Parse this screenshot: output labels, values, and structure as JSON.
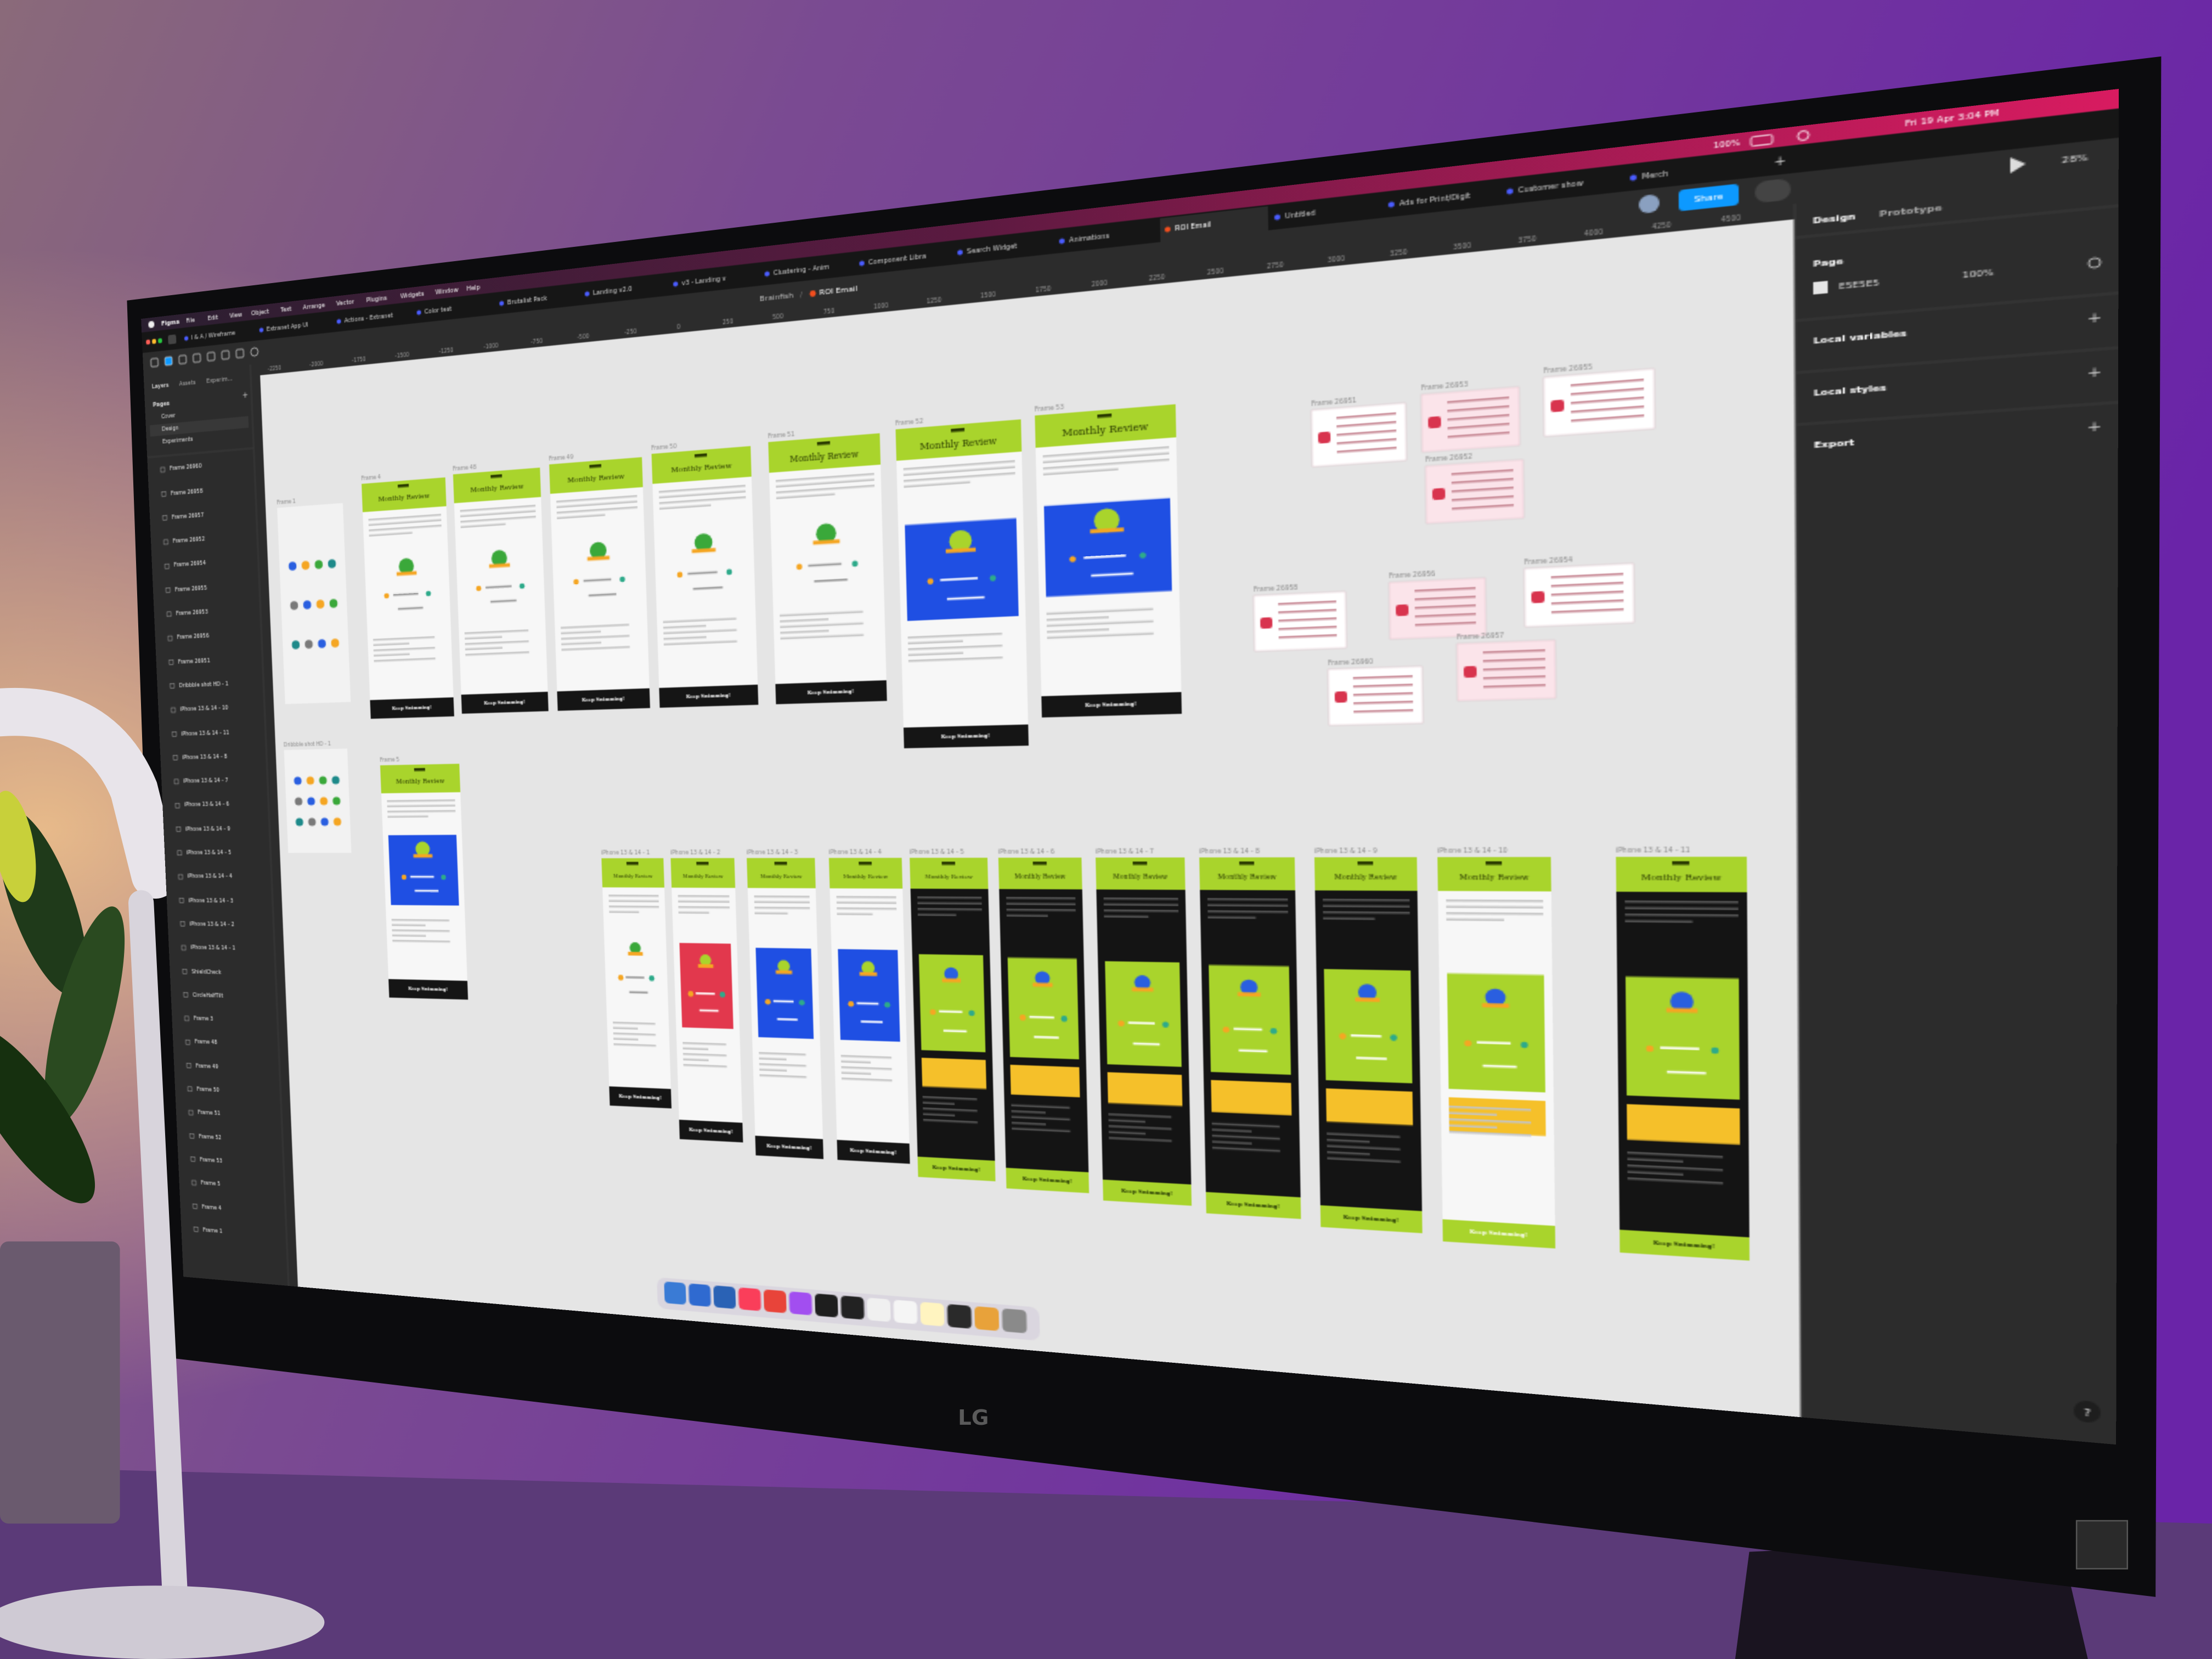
{
  "menu_bar": {
    "items": [
      "Figma",
      "File",
      "Edit",
      "View",
      "Object",
      "Text",
      "Arrange",
      "Vector",
      "Plugins",
      "Widgets",
      "Window",
      "Help"
    ],
    "battery": "100%",
    "datetime": "Fri 19 Apr  3:04 PM"
  },
  "tabs": [
    "I & A / Wireframe",
    "Extranet App UI",
    "Actions - Extranet",
    "Color test",
    "Brutalist Pack",
    "Landing v2.0",
    "v3 - Landing v",
    "Clustering - Anim",
    "Component Libra",
    "Search Widget",
    "Animations",
    "ROI Email",
    "Untitled",
    "Ads for Print/Digit",
    "Customer show",
    "Merch"
  ],
  "active_tab": 11,
  "toolbar": {
    "breadcrumb": "Brainfish",
    "file": "ROI Email",
    "share": "Share",
    "zoom": "28%"
  },
  "left_panel": {
    "tabs": [
      "Layers",
      "Assets",
      "Experim..."
    ],
    "pages_label": "Pages",
    "pages": [
      "Cover",
      "Design",
      "Experiments"
    ],
    "layers": [
      "Frame 26960",
      "Frame 26958",
      "Frame 26957",
      "Frame 26952",
      "Frame 26954",
      "Frame 26955",
      "Frame 26953",
      "Frame 26956",
      "Frame 26951",
      "Dribbble shot HD - 1",
      "iPhone 13 & 14 - 10",
      "iPhone 13 & 14 - 11",
      "iPhone 13 & 14 - 8",
      "iPhone 13 & 14 - 7",
      "iPhone 13 & 14 - 6",
      "iPhone 13 & 14 - 9",
      "iPhone 13 & 14 - 5",
      "iPhone 13 & 14 - 4",
      "iPhone 13 & 14 - 3",
      "iPhone 13 & 14 - 2",
      "iPhone 13 & 14 - 1",
      "ShieldCheck",
      "CircleHalfTilt",
      "Frame 3",
      "Frame 48",
      "Frame 49",
      "Frame 50",
      "Frame 51",
      "Frame 52",
      "Frame 53",
      "Frame 5",
      "Frame 4",
      "Frame 1"
    ]
  },
  "right_panel": {
    "tabs": [
      "Design",
      "Prototype"
    ],
    "page_label": "Page",
    "page_color": "E5E5E5",
    "page_opacity": "100%",
    "sections": [
      "Local variables",
      "Local styles",
      "Export"
    ]
  },
  "ruler": [
    -2250,
    -2000,
    -1750,
    -1500,
    -1250,
    -1000,
    -750,
    -500,
    -250,
    0,
    250,
    500,
    750,
    1000,
    1250,
    1500,
    1750,
    2000,
    2250,
    2500,
    2750,
    3000,
    3250,
    3500,
    3750,
    4000,
    4250,
    4500
  ],
  "card_title": "Monthly Review",
  "card_button": "Keep Swimming!",
  "frames": [
    {
      "label": "Frame 1",
      "style": "icons"
    },
    {
      "label": "Frame 4",
      "style": "white"
    },
    {
      "label": "Frame 48",
      "style": "white"
    },
    {
      "label": "Frame 49",
      "style": "white"
    },
    {
      "label": "Frame 50",
      "style": "white"
    },
    {
      "label": "Frame 51",
      "style": "white"
    },
    {
      "label": "Frame 52",
      "style": "blue"
    },
    {
      "label": "Frame 53",
      "style": "blue"
    },
    {
      "label": "Dribbble shot HD - 1",
      "style": "icons"
    },
    {
      "label": "Frame 5",
      "style": "blue"
    }
  ],
  "iphone_frames": [
    {
      "label": "iPhone 13 & 14 - 1",
      "style": "white"
    },
    {
      "label": "iPhone 13 & 14 - 2",
      "style": "red"
    },
    {
      "label": "iPhone 13 & 14 - 3",
      "style": "blue"
    },
    {
      "label": "iPhone 13 & 14 - 4",
      "style": "blue"
    },
    {
      "label": "iPhone 13 & 14 - 5",
      "style": "black"
    },
    {
      "label": "iPhone 13 & 14 - 6",
      "style": "black"
    },
    {
      "label": "iPhone 13 & 14 - 7",
      "style": "black"
    },
    {
      "label": "iPhone 13 & 14 - 8",
      "style": "black"
    },
    {
      "label": "iPhone 13 & 14 - 9",
      "style": "black"
    },
    {
      "label": "iPhone 13 & 14 - 10",
      "style": "lime"
    },
    {
      "label": "iPhone 13 & 14 - 11",
      "style": "black"
    }
  ],
  "sticky_frames": [
    "Frame 26951",
    "Frame 26953",
    "Frame 26955",
    "Frame 26952",
    "Frame 26958",
    "Frame 26956",
    "Frame 26954",
    "Frame 26957",
    "Frame 26960"
  ],
  "help": "?",
  "brand": "LG"
}
